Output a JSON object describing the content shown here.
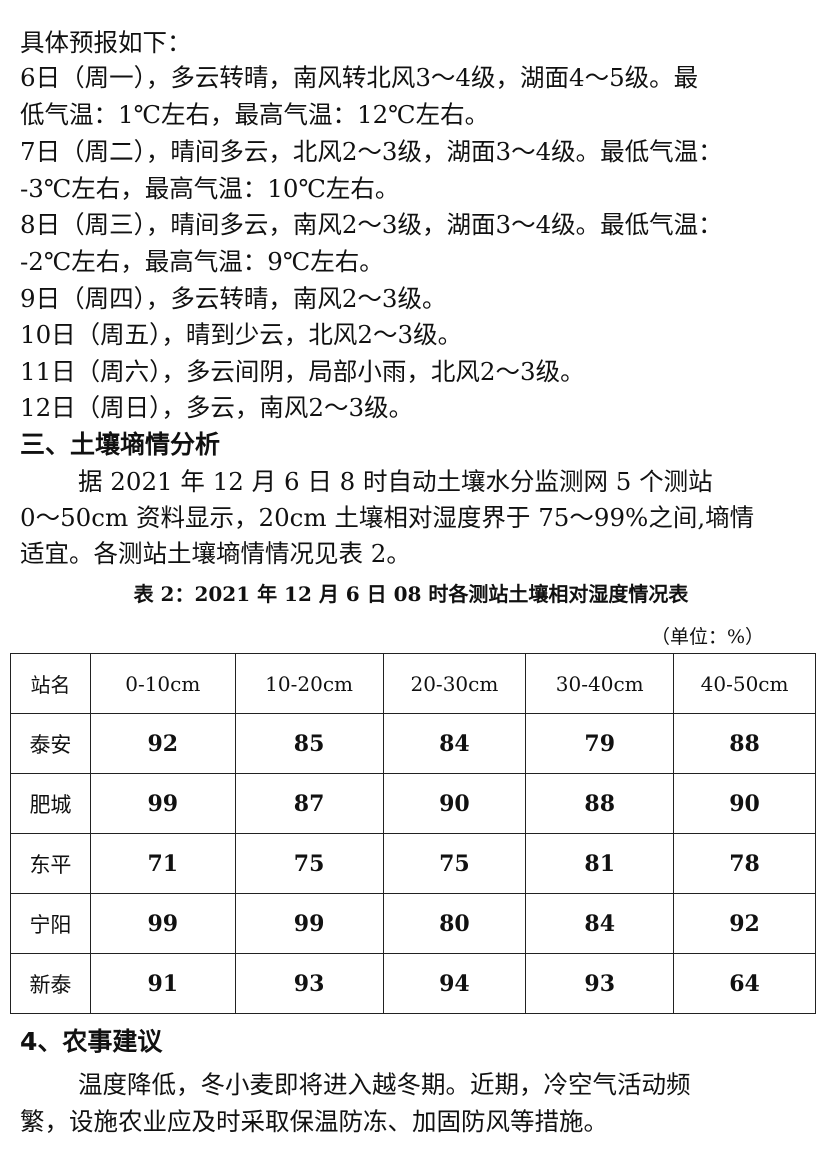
{
  "forecast": {
    "intro": "具体预报如下：",
    "lines": [
      "6日（周一），多云转晴，南风转北风3～4级，湖面4～5级。最",
      "低气温：1℃左右，最高气温：12℃左右。",
      "7日（周二），晴间多云，北风2～3级，湖面3～4级。最低气温：",
      "-3℃左右，最高气温：10℃左右。",
      "8日（周三），晴间多云，南风2～3级，湖面3～4级。最低气温：",
      "-2℃左右，最高气温：9℃左右。",
      "9日（周四），多云转晴，南风2～3级。",
      "10日（周五），晴到少云，北风2～3级。",
      "11日（周六），多云间阴，局部小雨，北风2～3级。",
      "12日（周日），多云，南风2～3级。"
    ]
  },
  "soil": {
    "heading": "三、土壤墒情分析",
    "para_lines": [
      "据 2021 年 12 月 6 日 8 时自动土壤水分监测网 5 个测站",
      "0～50cm 资料显示，20cm 土壤相对湿度界于 75～99%之间,墒情",
      "适宜。各测站土壤墒情情况见表 2。"
    ],
    "table_caption": "表 2：2021 年 12 月 6 日 08 时各测站土壤相对湿度情况表",
    "unit": "（单位：%）",
    "columns": [
      "站名",
      "0-10cm",
      "10-20cm",
      "20-30cm",
      "30-40cm",
      "40-50cm"
    ],
    "rows": [
      [
        "泰安",
        "92",
        "85",
        "84",
        "79",
        "88"
      ],
      [
        "肥城",
        "99",
        "87",
        "90",
        "88",
        "90"
      ],
      [
        "东平",
        "71",
        "75",
        "75",
        "81",
        "78"
      ],
      [
        "宁阳",
        "99",
        "99",
        "80",
        "84",
        "92"
      ],
      [
        "新泰",
        "91",
        "93",
        "94",
        "93",
        "64"
      ]
    ]
  },
  "advice": {
    "heading": "4、农事建议",
    "para_lines": [
      "温度降低，冬小麦即将进入越冬期。近期，冷空气活动频",
      "繁，设施农业应及时采取保温防冻、加固防风等措施。"
    ]
  }
}
